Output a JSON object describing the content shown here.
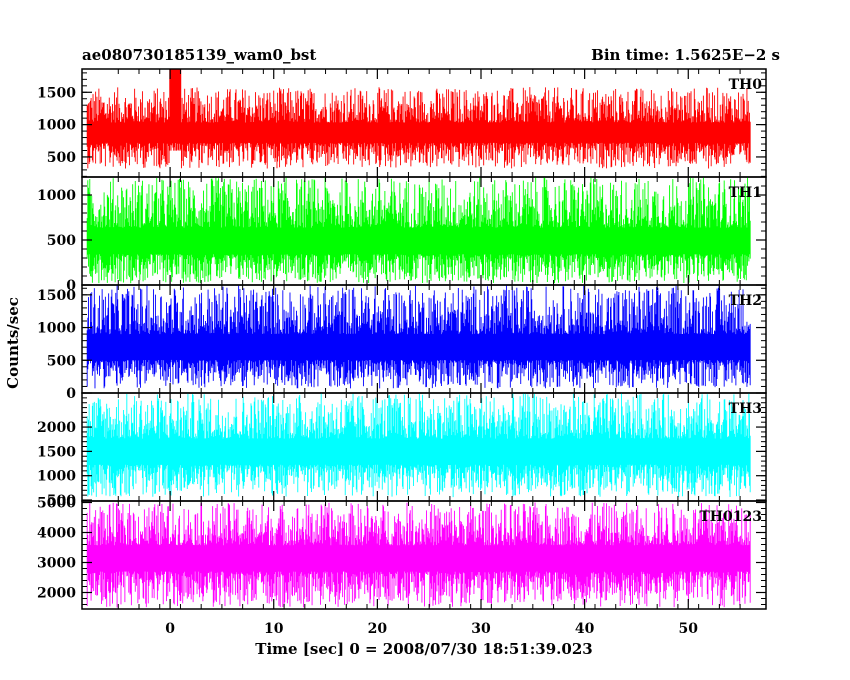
{
  "header": {
    "left_title": "ae080730185139_wam0_bst",
    "right_title": "Bin time: 1.5625E−2 s"
  },
  "chart_data": {
    "type": "line",
    "xlabel": "Time [sec] 0 = 2008/07/30 18:51:39.023",
    "ylabel": "Counts/sec",
    "xlim": [
      -8.5,
      57.5
    ],
    "x_ticks": [
      0,
      10,
      20,
      30,
      40,
      50
    ],
    "x_tick_labels": [
      "0",
      "10",
      "20",
      "30",
      "40",
      "50"
    ],
    "data_x_range": [
      -8,
      56
    ],
    "bin_time": 0.015625,
    "panels": [
      {
        "name": "TH0",
        "color": "#ff0000",
        "ylim": [
          190,
          1860
        ],
        "ticks": [
          500,
          1000,
          1500
        ],
        "tick_labels": [
          "500",
          "1000",
          "1500"
        ],
        "envelope_low": 320,
        "envelope_high": 1580,
        "mean": 850,
        "peak_time": 0.5,
        "peak_value": 1860
      },
      {
        "name": "TH1",
        "color": "#00ff00",
        "ylim": [
          0,
          1200
        ],
        "ticks": [
          0,
          500,
          1000
        ],
        "tick_labels": [
          "0",
          "500",
          "1000"
        ],
        "envelope_low": 20,
        "envelope_high": 1200,
        "mean": 450
      },
      {
        "name": "TH2",
        "color": "#0000ff",
        "ylim": [
          0,
          1650
        ],
        "ticks": [
          0,
          500,
          1000,
          1500
        ],
        "tick_labels": [
          "0",
          "500",
          "1000",
          "1500"
        ],
        "envelope_low": 70,
        "envelope_high": 1650,
        "mean": 650
      },
      {
        "name": "TH3",
        "color": "#00ffff",
        "ylim": [
          480,
          2700
        ],
        "ticks": [
          500,
          1000,
          1500,
          2000
        ],
        "tick_labels": [
          "500",
          "1000",
          "1500",
          "2000"
        ],
        "envelope_low": 560,
        "envelope_high": 2700,
        "mean": 1450
      },
      {
        "name": "TH0123",
        "color": "#ff00ff",
        "ylim": [
          1450,
          5050
        ],
        "ticks": [
          2000,
          3000,
          4000,
          5000
        ],
        "tick_labels": [
          "2000",
          "3000",
          "4000",
          "5000"
        ],
        "envelope_low": 1500,
        "envelope_high": 5000,
        "mean": 3100
      }
    ]
  }
}
